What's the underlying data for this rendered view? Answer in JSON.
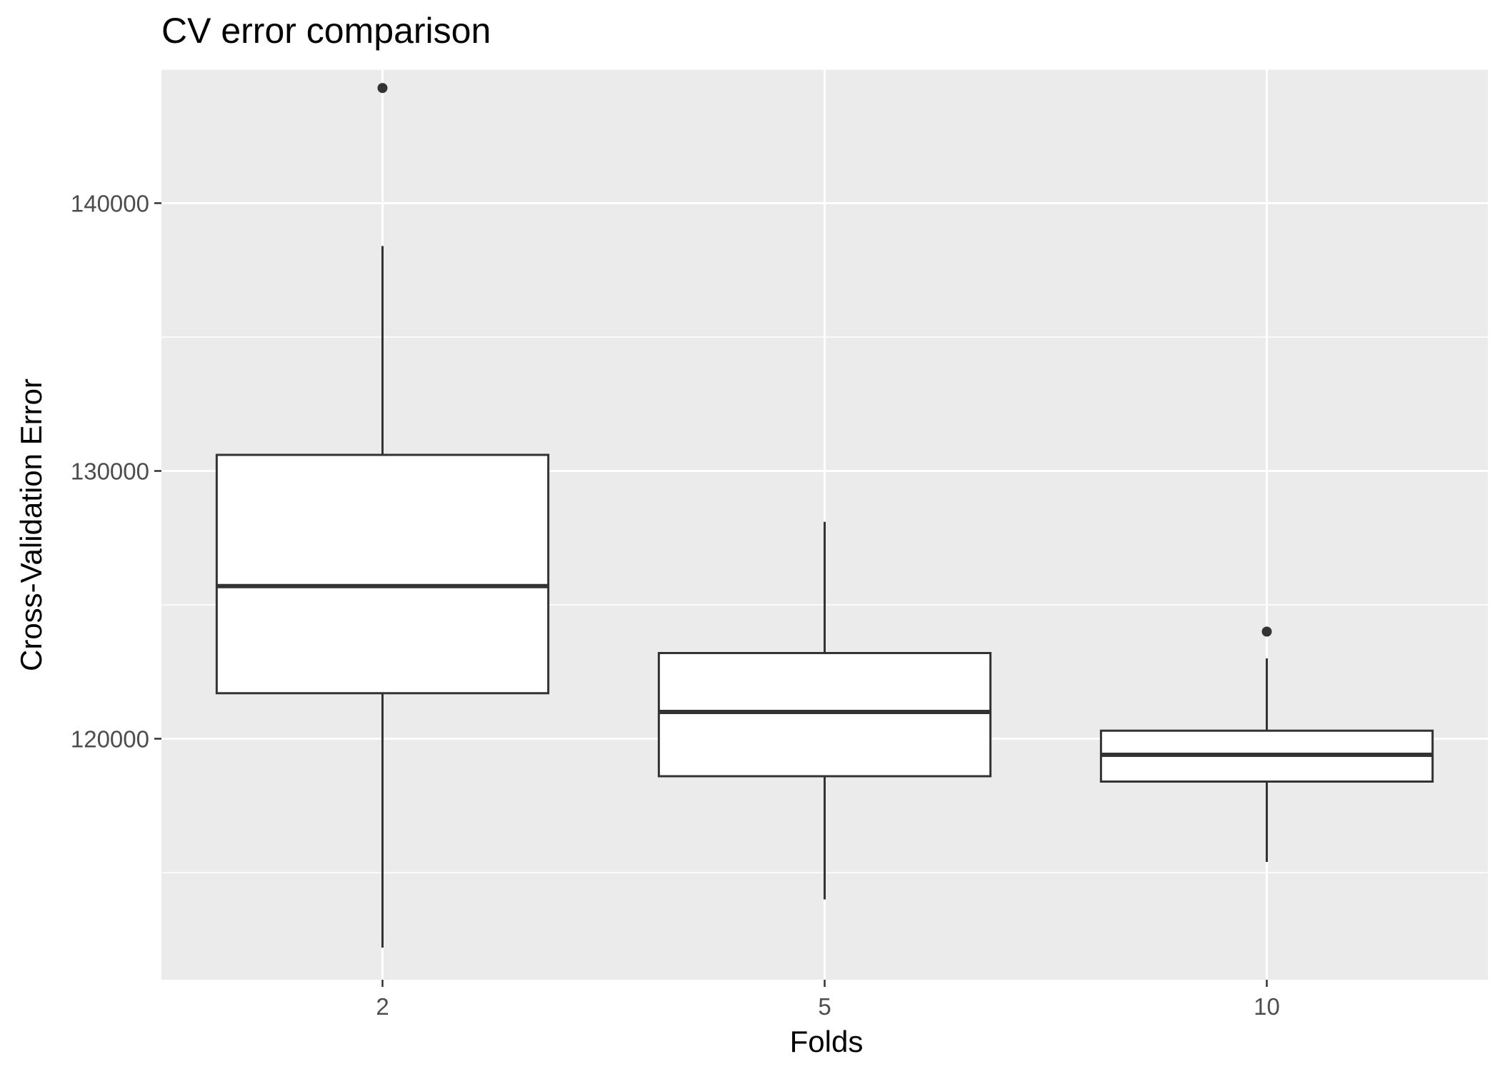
{
  "chart_data": {
    "type": "box",
    "title": "CV error comparison",
    "xlabel": "Folds",
    "ylabel": "Cross-Validation Error",
    "categories": [
      "2",
      "5",
      "10"
    ],
    "ylim": [
      111000,
      145000
    ],
    "y_ticks": [
      120000,
      130000,
      140000
    ],
    "y_tick_labels": [
      "120000",
      "130000",
      "140000"
    ],
    "grid": true,
    "panel_background": "#ebebeb",
    "grid_color": "#ffffff",
    "box_fill": "#ffffff",
    "line_color": "#333333",
    "boxes": [
      {
        "category": "2",
        "lower_whisker": 112200,
        "q1": 121700,
        "median": 125700,
        "q3": 130600,
        "upper_whisker": 138400,
        "outliers": [
          144300
        ]
      },
      {
        "category": "5",
        "lower_whisker": 114000,
        "q1": 118600,
        "median": 121000,
        "q3": 123200,
        "upper_whisker": 128100,
        "outliers": []
      },
      {
        "category": "10",
        "lower_whisker": 115400,
        "q1": 118400,
        "median": 119400,
        "q3": 120300,
        "upper_whisker": 123000,
        "outliers": [
          124000
        ]
      }
    ]
  }
}
